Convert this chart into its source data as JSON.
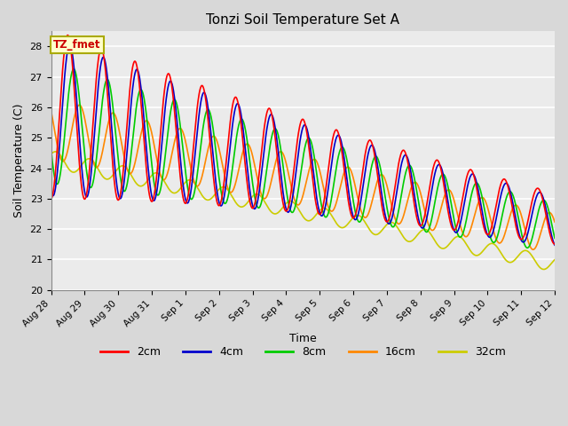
{
  "title": "Tonzi Soil Temperature Set A",
  "xlabel": "Time",
  "ylabel": "Soil Temperature (C)",
  "ylim": [
    20.0,
    28.5
  ],
  "yticks": [
    20.0,
    21.0,
    22.0,
    23.0,
    24.0,
    25.0,
    26.0,
    27.0,
    28.0
  ],
  "annotation_label": "TZ_fmet",
  "annotation_bg": "#ffffcc",
  "annotation_border": "#aaaa00",
  "colors": {
    "2cm": "#ff0000",
    "4cm": "#0000cc",
    "8cm": "#00cc00",
    "16cm": "#ff8800",
    "32cm": "#cccc00"
  },
  "legend_labels": [
    "2cm",
    "4cm",
    "8cm",
    "16cm",
    "32cm"
  ],
  "background_color": "#d8d8d8",
  "plot_bg": "#ebebeb",
  "n_days": 15,
  "samples_per_day": 96
}
